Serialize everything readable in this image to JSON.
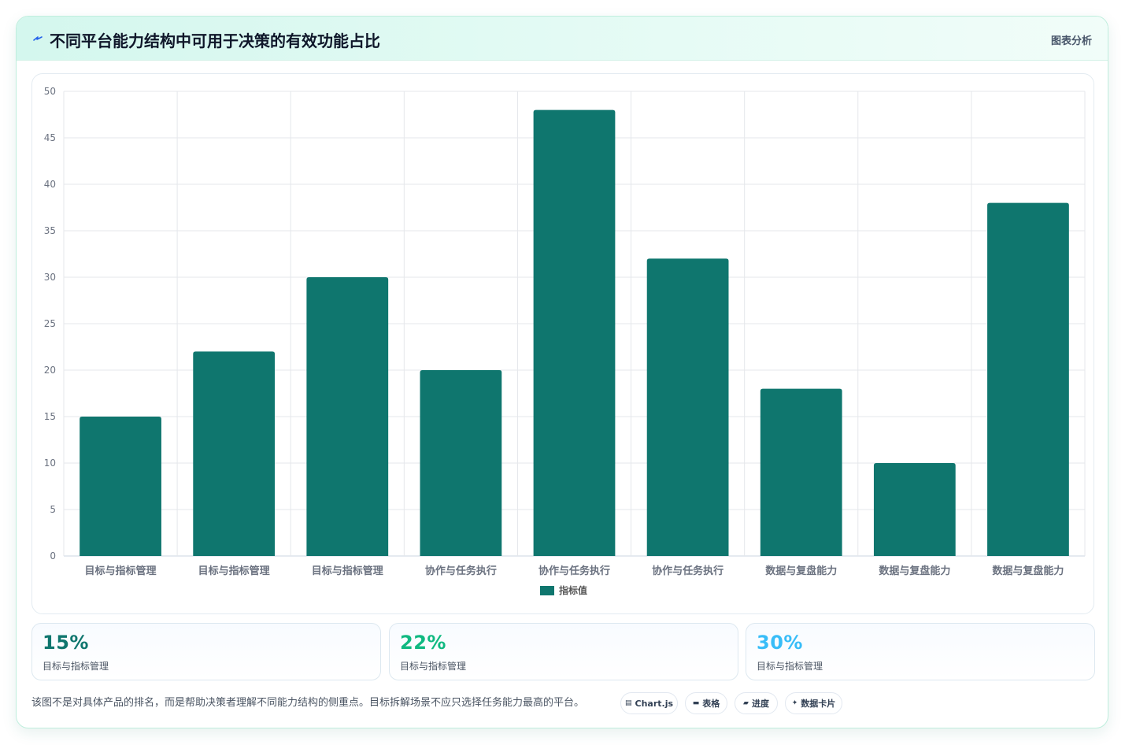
{
  "header": {
    "title": "不同平台能力结构中可用于决策的有效功能占比",
    "tag": "图表分析",
    "icon": "bolt-icon"
  },
  "colors": {
    "bar": "#0f766e",
    "stat1": "#0f766e",
    "stat2": "#10b981",
    "stat3": "#38bdf8"
  },
  "chart_data": {
    "type": "bar",
    "categories": [
      "目标与指标管理",
      "目标与指标管理",
      "目标与指标管理",
      "协作与任务执行",
      "协作与任务执行",
      "协作与任务执行",
      "数据与复盘能力",
      "数据与复盘能力",
      "数据与复盘能力"
    ],
    "series": [
      {
        "name": "指标值",
        "values": [
          15,
          22,
          30,
          20,
          48,
          32,
          18,
          10,
          38
        ]
      }
    ],
    "ylim": [
      0,
      50
    ],
    "yticks": [
      0,
      5,
      10,
      15,
      20,
      25,
      30,
      35,
      40,
      45,
      50
    ],
    "grid": true,
    "legend": "bottom"
  },
  "stats": [
    {
      "value": "15%",
      "label": "目标与指标管理"
    },
    {
      "value": "22%",
      "label": "目标与指标管理"
    },
    {
      "value": "30%",
      "label": "目标与指标管理"
    }
  ],
  "footer": {
    "note": "该图不是对具体产品的排名，而是帮助决策者理解不同能力结构的侧重点。目标拆解场景不应只选择任务能力最高的平台。",
    "pills": [
      {
        "icon": "chart-icon",
        "label": "Chart.js"
      },
      {
        "icon": "table-icon",
        "label": "表格"
      },
      {
        "icon": "progress-icon",
        "label": "进度"
      },
      {
        "icon": "sparkle-icon",
        "label": "数据卡片"
      }
    ]
  }
}
